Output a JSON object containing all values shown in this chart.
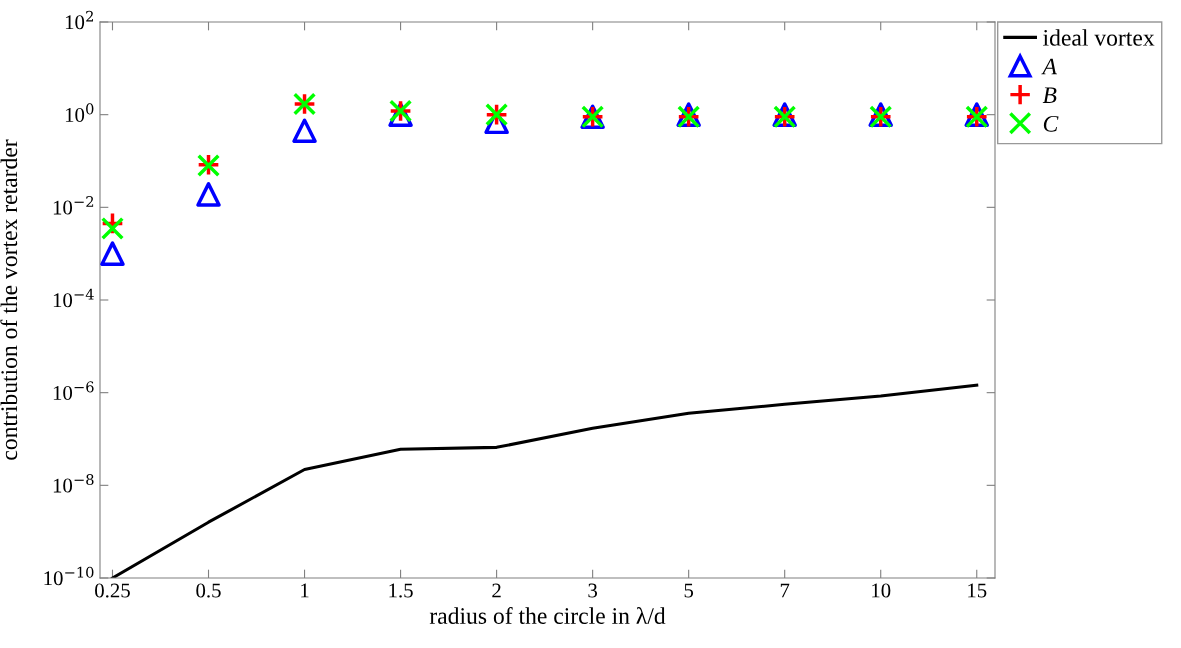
{
  "chart_data": {
    "type": "scatter",
    "xlabel": "radius of the circle in λ/d",
    "ylabel": "contribution of the vortex retarder",
    "categories": [
      "0.25",
      "0.5",
      "1",
      "1.5",
      "2",
      "3",
      "5",
      "7",
      "10",
      "15"
    ],
    "log": "y",
    "ylim": [
      1e-10,
      100
    ],
    "yticks": [
      {
        "value": 1e-10,
        "label": "10$^{−10}$"
      },
      {
        "value": 1e-08,
        "label": "10$^{−8}$"
      },
      {
        "value": 1e-06,
        "label": "10$^{−6}$"
      },
      {
        "value": 0.0001,
        "label": "10$^{−4}$"
      },
      {
        "value": 0.01,
        "label": "10$^{−2}$"
      },
      {
        "value": 1,
        "label": "10$^{0}$"
      },
      {
        "value": 100,
        "label": "10$^{2}$"
      }
    ],
    "grid": false,
    "legend": "top right",
    "series": [
      {
        "name": "ideal vortex",
        "type": "line",
        "color": "#000000",
        "marker": "none",
        "line_style": "solid",
        "values": [
          1e-10,
          1.6e-09,
          2.2e-08,
          6e-08,
          6.6e-08,
          1.7e-07,
          3.6e-07,
          5.6e-07,
          8.5e-07,
          1.45e-06
        ]
      },
      {
        "name": "A",
        "type": "scatter",
        "color": "#0000ff",
        "marker": "triangle",
        "values": [
          0.001,
          0.019,
          0.45,
          1.0,
          0.7,
          0.9,
          1.0,
          1.0,
          1.0,
          1.0
        ]
      },
      {
        "name": "B",
        "type": "scatter",
        "color": "#ff0000",
        "marker": "plus",
        "values": [
          0.0045,
          0.083,
          1.7,
          1.2,
          1.0,
          0.9,
          0.9,
          0.9,
          0.9,
          0.9
        ]
      },
      {
        "name": "C",
        "type": "scatter",
        "color": "#00ff00",
        "marker": "cross",
        "values": [
          0.0035,
          0.08,
          1.7,
          1.2,
          1.0,
          0.9,
          0.9,
          0.9,
          0.9,
          0.9
        ]
      }
    ]
  }
}
